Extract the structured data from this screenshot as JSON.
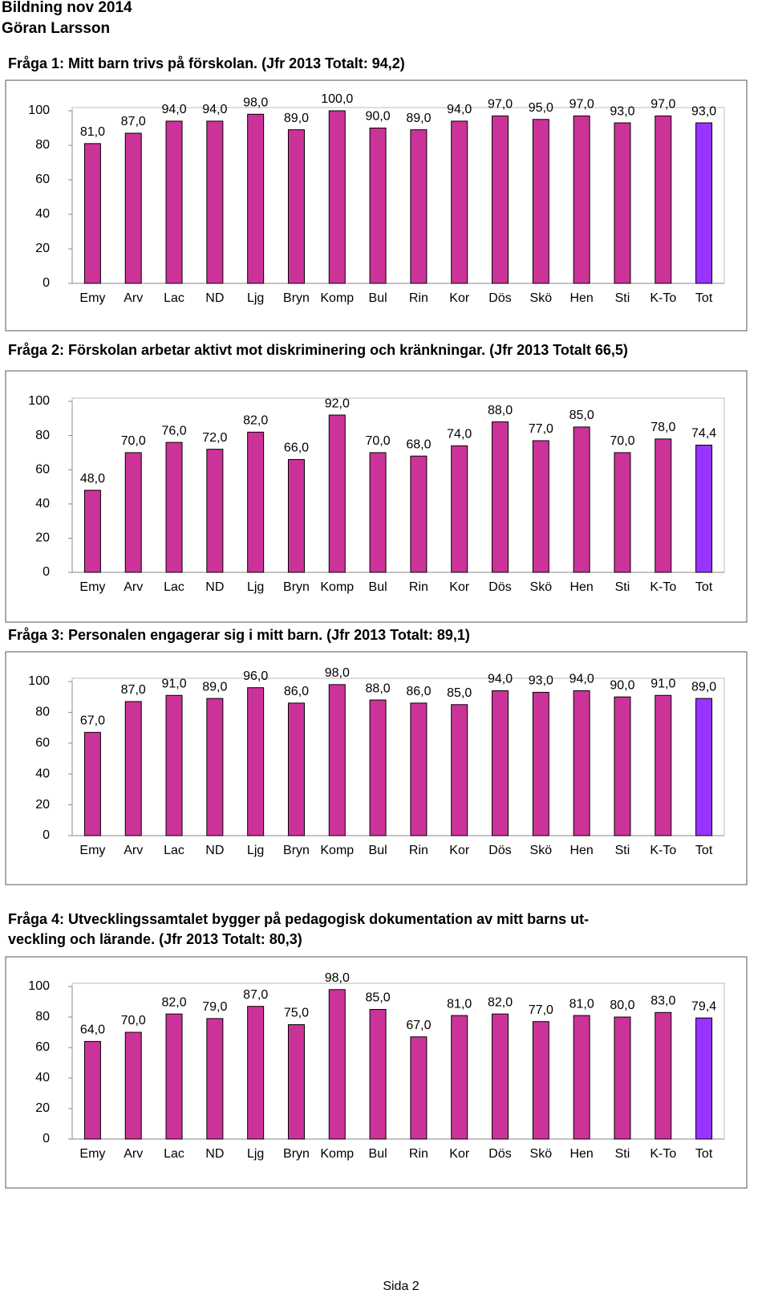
{
  "header": {
    "lines": [
      "Bildning nov 2014",
      "Göran Larsson"
    ]
  },
  "chart_data": [
    {
      "type": "bar",
      "title_lines": [
        "Fråga 1: Mitt barn trivs på förskolan. (Jfr 2013 Totalt: 94,2)"
      ],
      "categories": [
        "Emy",
        "Arv",
        "Lac",
        "ND",
        "Ljg",
        "Bryn",
        "Komp",
        "Bul",
        "Rin",
        "Kor",
        "Dös",
        "Skö",
        "Hen",
        "Sti",
        "K-To",
        "Tot"
      ],
      "values": [
        81,
        87,
        94,
        94,
        98,
        89,
        100,
        90,
        89,
        94,
        97,
        95,
        97,
        93,
        97,
        93
      ],
      "value_labels": [
        "81,0",
        "87,0",
        "94,0",
        "94,0",
        "98,0",
        "89,0",
        "100,0",
        "90,0",
        "89,0",
        "94,0",
        "97,0",
        "95,0",
        "97,0",
        "93,0",
        "97,0",
        "93,0"
      ],
      "colors": [
        "#cc3399",
        "#cc3399",
        "#cc3399",
        "#cc3399",
        "#cc3399",
        "#cc3399",
        "#cc3399",
        "#cc3399",
        "#cc3399",
        "#cc3399",
        "#cc3399",
        "#cc3399",
        "#cc3399",
        "#cc3399",
        "#cc3399",
        "#9933ff"
      ],
      "ylim": [
        0,
        100
      ],
      "yticks": [
        0,
        20,
        40,
        60,
        80,
        100
      ]
    },
    {
      "type": "bar",
      "title_lines": [
        "Fråga 2: Förskolan arbetar aktivt mot diskriminering och kränkningar. (Jfr 2013 Totalt 66,5)"
      ],
      "categories": [
        "Emy",
        "Arv",
        "Lac",
        "ND",
        "Ljg",
        "Bryn",
        "Komp",
        "Bul",
        "Rin",
        "Kor",
        "Dös",
        "Skö",
        "Hen",
        "Sti",
        "K-To",
        "Tot"
      ],
      "values": [
        48,
        70,
        76,
        72,
        82,
        66,
        92,
        70,
        68,
        74,
        88,
        77,
        85,
        70,
        78,
        74.4
      ],
      "value_labels": [
        "48,0",
        "70,0",
        "76,0",
        "72,0",
        "82,0",
        "66,0",
        "92,0",
        "70,0",
        "68,0",
        "74,0",
        "88,0",
        "77,0",
        "85,0",
        "70,0",
        "78,0",
        "74,4"
      ],
      "colors": [
        "#cc3399",
        "#cc3399",
        "#cc3399",
        "#cc3399",
        "#cc3399",
        "#cc3399",
        "#cc3399",
        "#cc3399",
        "#cc3399",
        "#cc3399",
        "#cc3399",
        "#cc3399",
        "#cc3399",
        "#cc3399",
        "#cc3399",
        "#9933ff"
      ],
      "ylim": [
        0,
        100
      ],
      "yticks": [
        0,
        20,
        40,
        60,
        80,
        100
      ]
    },
    {
      "type": "bar",
      "title_lines": [
        "Fråga 3: Personalen engagerar sig i mitt barn. (Jfr 2013 Totalt: 89,1)"
      ],
      "categories": [
        "Emy",
        "Arv",
        "Lac",
        "ND",
        "Ljg",
        "Bryn",
        "Komp",
        "Bul",
        "Rin",
        "Kor",
        "Dös",
        "Skö",
        "Hen",
        "Sti",
        "K-To",
        "Tot"
      ],
      "values": [
        67,
        87,
        91,
        89,
        96,
        86,
        98,
        88,
        86,
        85,
        94,
        93,
        94,
        90,
        91,
        89
      ],
      "value_labels": [
        "67,0",
        "87,0",
        "91,0",
        "89,0",
        "96,0",
        "86,0",
        "98,0",
        "88,0",
        "86,0",
        "85,0",
        "94,0",
        "93,0",
        "94,0",
        "90,0",
        "91,0",
        "89,0"
      ],
      "colors": [
        "#cc3399",
        "#cc3399",
        "#cc3399",
        "#cc3399",
        "#cc3399",
        "#cc3399",
        "#cc3399",
        "#cc3399",
        "#cc3399",
        "#cc3399",
        "#cc3399",
        "#cc3399",
        "#cc3399",
        "#cc3399",
        "#cc3399",
        "#9933ff"
      ],
      "ylim": [
        0,
        100
      ],
      "yticks": [
        0,
        20,
        40,
        60,
        80,
        100
      ]
    },
    {
      "type": "bar",
      "title_lines": [
        "Fråga 4: Utvecklingssamtalet bygger på pedagogisk dokumentation av mitt barns ut-",
        "veckling och lärande. (Jfr 2013 Totalt: 80,3)"
      ],
      "categories": [
        "Emy",
        "Arv",
        "Lac",
        "ND",
        "Ljg",
        "Bryn",
        "Komp",
        "Bul",
        "Rin",
        "Kor",
        "Dös",
        "Skö",
        "Hen",
        "Sti",
        "K-To",
        "Tot"
      ],
      "values": [
        64,
        70,
        82,
        79,
        87,
        75,
        98,
        85,
        67,
        81,
        82,
        77,
        81,
        80,
        83,
        79.4
      ],
      "value_labels": [
        "64,0",
        "70,0",
        "82,0",
        "79,0",
        "87,0",
        "75,0",
        "98,0",
        "85,0",
        "67,0",
        "81,0",
        "82,0",
        "77,0",
        "81,0",
        "80,0",
        "83,0",
        "79,4"
      ],
      "colors": [
        "#cc3399",
        "#cc3399",
        "#cc3399",
        "#cc3399",
        "#cc3399",
        "#cc3399",
        "#cc3399",
        "#cc3399",
        "#cc3399",
        "#cc3399",
        "#cc3399",
        "#cc3399",
        "#cc3399",
        "#cc3399",
        "#cc3399",
        "#9933ff"
      ],
      "ylim": [
        0,
        100
      ],
      "yticks": [
        0,
        20,
        40,
        60,
        80,
        100
      ]
    }
  ],
  "footer": {
    "text": "Sida 2"
  }
}
